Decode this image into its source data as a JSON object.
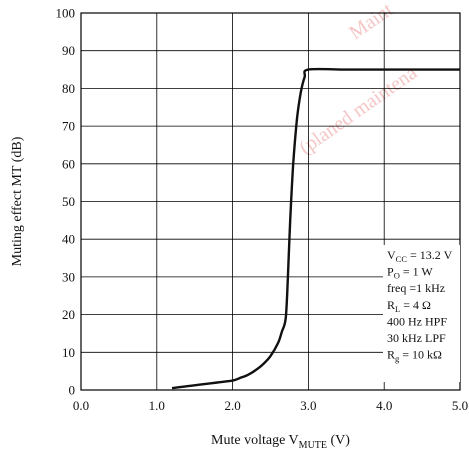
{
  "watermark": [
    "Maint",
    "(planed maintena"
  ],
  "chart_data": {
    "type": "line",
    "title": "",
    "xlabel": {
      "text": "Mute voltage  V",
      "sub": "MUTE",
      "unit": "  (V)"
    },
    "ylabel": "Muting effect  MT  (dB)",
    "xlim": [
      0.0,
      5.0
    ],
    "ylim": [
      0,
      100
    ],
    "xticks": [
      0.0,
      1.0,
      2.0,
      3.0,
      4.0,
      5.0
    ],
    "xtick_labels": [
      "0.0",
      "1.0",
      "2.0",
      "3.0",
      "4.0",
      "5.0"
    ],
    "yticks": [
      0,
      10,
      20,
      30,
      40,
      50,
      60,
      70,
      80,
      90,
      100
    ],
    "ytick_labels": [
      "0",
      "10",
      "20",
      "30",
      "40",
      "50",
      "60",
      "70",
      "80",
      "90",
      "100"
    ],
    "grid": true,
    "series": [
      {
        "name": "",
        "x": [
          1.2,
          1.4,
          1.6,
          1.8,
          2.0,
          2.1,
          2.2,
          2.3,
          2.4,
          2.5,
          2.6,
          2.65,
          2.7,
          2.73,
          2.76,
          2.8,
          2.85,
          2.9,
          2.95,
          3.0,
          3.5,
          4.0,
          4.5,
          5.0
        ],
        "y": [
          0.5,
          1.0,
          1.5,
          2.0,
          2.5,
          3.2,
          4.0,
          5.2,
          6.8,
          9.0,
          12.5,
          15.5,
          19.0,
          30.0,
          45.0,
          60.0,
          72.0,
          79.0,
          83.0,
          85.0,
          85.0,
          85.0,
          85.0,
          85.0
        ]
      }
    ],
    "conditions": [
      {
        "pre": "V",
        "sub": "CC",
        "post": " = 13.2 V"
      },
      {
        "pre": "P",
        "sub": "O",
        "post": " = 1 W"
      },
      {
        "pre": "freq =1 kHz",
        "sub": "",
        "post": ""
      },
      {
        "pre": "R",
        "sub": "L",
        "post": " = 4 Ω"
      },
      {
        "pre": "400 Hz HPF",
        "sub": "",
        "post": ""
      },
      {
        "pre": "30 kHz LPF",
        "sub": "",
        "post": ""
      },
      {
        "pre": "R",
        "sub": "g",
        "post": " = 10 kΩ"
      }
    ]
  }
}
